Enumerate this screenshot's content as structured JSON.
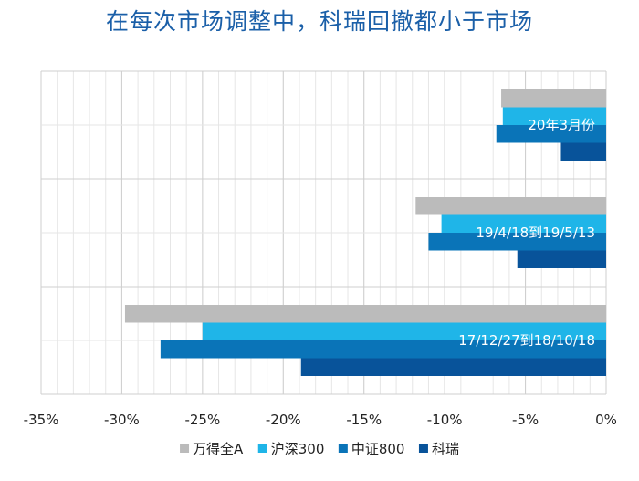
{
  "chart_data": {
    "type": "bar",
    "orientation": "horizontal",
    "title": "在每次市场调整中，科瑞回撤都小于市场",
    "categories": [
      "20年3月份",
      "19/4/18到19/5/13",
      "17/12/27到18/10/18"
    ],
    "series": [
      {
        "name": "万得全A",
        "color": "#bbbbbb",
        "values": [
          -6.5,
          -11.8,
          -29.8
        ]
      },
      {
        "name": "沪深300",
        "color": "#1fb5e8",
        "values": [
          -6.4,
          -10.2,
          -25.0
        ]
      },
      {
        "name": "中证800",
        "color": "#0a74b8",
        "values": [
          -6.8,
          -11.0,
          -27.6
        ]
      },
      {
        "name": "科瑞",
        "color": "#08539a",
        "values": [
          -2.8,
          -5.5,
          -18.9
        ]
      }
    ],
    "xlim": [
      -35,
      0
    ],
    "xticks": [
      -35,
      -30,
      -25,
      -20,
      -15,
      -10,
      -5,
      0
    ],
    "xtick_labels": [
      "-35%",
      "-30%",
      "-25%",
      "-20%",
      "-15%",
      "-10%",
      "-5%",
      "0%"
    ],
    "grid": true,
    "legend_position": "bottom"
  }
}
